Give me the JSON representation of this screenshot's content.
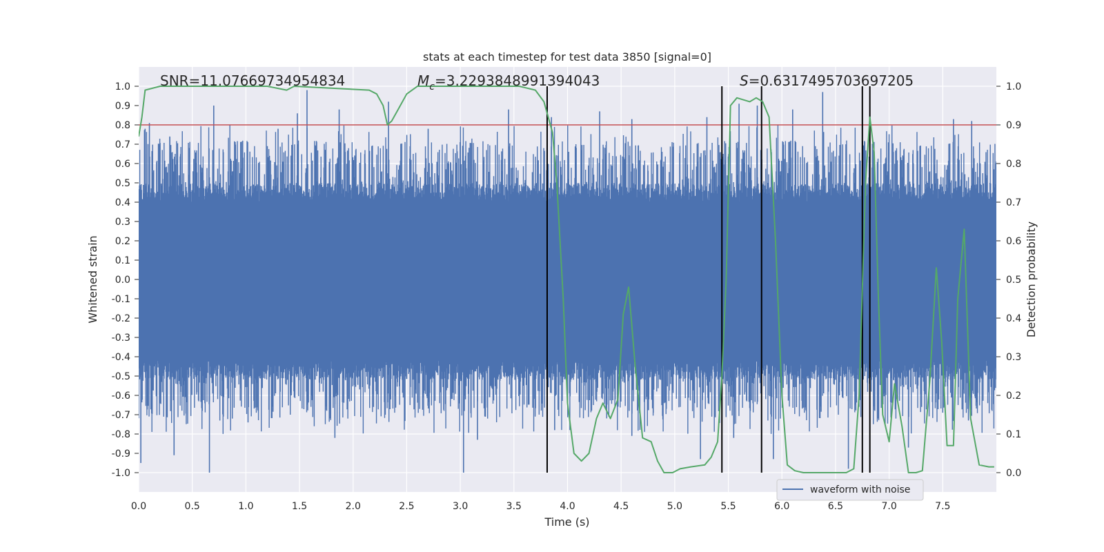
{
  "chart_data": {
    "type": "line",
    "title": "stats at each timestep for test data 3850 [signal=0]",
    "xlabel": "Time (s)",
    "ylabel": "Whitened strain",
    "y2label": "Detection probability",
    "xlim": [
      0.0,
      8.0
    ],
    "ylim": [
      -1.1,
      1.1
    ],
    "y2lim": [
      -0.05,
      1.05
    ],
    "xticks": [
      "0.0",
      "0.5",
      "1.0",
      "1.5",
      "2.0",
      "2.5",
      "3.0",
      "3.5",
      "4.0",
      "4.5",
      "5.0",
      "5.5",
      "6.0",
      "6.5",
      "7.0",
      "7.5"
    ],
    "xtick_values": [
      0.0,
      0.5,
      1.0,
      1.5,
      2.0,
      2.5,
      3.0,
      3.5,
      4.0,
      4.5,
      5.0,
      5.5,
      6.0,
      6.5,
      7.0,
      7.5
    ],
    "yticks": [
      "1.0",
      "0.9",
      "0.8",
      "0.7",
      "0.6",
      "0.5",
      "0.4",
      "0.3",
      "0.2",
      "0.1",
      "0.0",
      "-0.1",
      "-0.2",
      "-0.3",
      "-0.4",
      "-0.5",
      "-0.6",
      "-0.7",
      "-0.8",
      "-0.9",
      "-1.0"
    ],
    "ytick_values": [
      1.0,
      0.9,
      0.8,
      0.7,
      0.6,
      0.5,
      0.4,
      0.3,
      0.2,
      0.1,
      0.0,
      -0.1,
      -0.2,
      -0.3,
      -0.4,
      -0.5,
      -0.6,
      -0.7,
      -0.8,
      -0.9,
      -1.0
    ],
    "y2ticks": [
      "1.0",
      "0.9",
      "0.8",
      "0.7",
      "0.6",
      "0.5",
      "0.4",
      "0.3",
      "0.2",
      "0.1",
      "0.0"
    ],
    "y2tick_values": [
      1.0,
      0.9,
      0.8,
      0.7,
      0.6,
      0.5,
      0.4,
      0.3,
      0.2,
      0.1,
      0.0
    ],
    "threshold": 0.9,
    "event_lines_x": [
      3.81,
      5.44,
      5.81,
      6.75,
      6.82
    ],
    "waveform": {
      "name": "waveform with noise",
      "color": "#4c72b0",
      "dense_band": [
        -0.42,
        0.4
      ],
      "n_samples": 2400,
      "peak_spikes": [
        [
          0.06,
          0.78
        ],
        [
          0.1,
          0.81
        ],
        [
          0.29,
          0.74
        ],
        [
          0.7,
          0.9
        ],
        [
          1.3,
          0.78
        ],
        [
          1.48,
          0.86
        ],
        [
          1.57,
          0.98
        ],
        [
          1.87,
          0.88
        ],
        [
          2.33,
          0.92
        ],
        [
          2.7,
          0.78
        ],
        [
          3.45,
          0.88
        ],
        [
          3.85,
          0.84
        ],
        [
          4.3,
          0.87
        ],
        [
          4.6,
          0.83
        ],
        [
          5.3,
          0.84
        ],
        [
          5.6,
          0.91
        ],
        [
          5.77,
          0.9
        ],
        [
          6.1,
          0.88
        ],
        [
          6.38,
          0.97
        ],
        [
          6.75,
          0.88
        ],
        [
          7.6,
          0.83
        ],
        [
          7.77,
          0.82
        ]
      ],
      "trough_spikes": [
        [
          0.02,
          -0.95
        ],
        [
          0.33,
          -0.91
        ],
        [
          0.66,
          -1.0
        ],
        [
          1.02,
          -0.74
        ],
        [
          1.83,
          -0.82
        ],
        [
          2.3,
          -0.7
        ],
        [
          3.03,
          -1.0
        ],
        [
          3.16,
          -0.83
        ],
        [
          3.88,
          -0.78
        ],
        [
          4.6,
          -0.81
        ],
        [
          4.8,
          -0.69
        ],
        [
          5.24,
          -0.93
        ],
        [
          5.55,
          -0.82
        ],
        [
          5.92,
          -0.93
        ],
        [
          6.62,
          -0.98
        ],
        [
          7.18,
          -0.87
        ],
        [
          7.74,
          -0.73
        ]
      ]
    },
    "detection_probability": {
      "color": "#55a868",
      "points": [
        [
          0.0,
          0.87
        ],
        [
          0.03,
          0.92
        ],
        [
          0.06,
          0.99
        ],
        [
          0.2,
          1.0
        ],
        [
          1.2,
          1.0
        ],
        [
          1.38,
          0.99
        ],
        [
          1.45,
          1.0
        ],
        [
          2.15,
          0.99
        ],
        [
          2.22,
          0.98
        ],
        [
          2.28,
          0.95
        ],
        [
          2.32,
          0.9
        ],
        [
          2.36,
          0.91
        ],
        [
          2.42,
          0.94
        ],
        [
          2.5,
          0.98
        ],
        [
          2.6,
          1.0
        ],
        [
          3.55,
          1.0
        ],
        [
          3.7,
          0.99
        ],
        [
          3.78,
          0.96
        ],
        [
          3.82,
          0.92
        ],
        [
          3.86,
          0.88
        ],
        [
          3.9,
          0.75
        ],
        [
          3.96,
          0.45
        ],
        [
          4.0,
          0.18
        ],
        [
          4.06,
          0.05
        ],
        [
          4.13,
          0.03
        ],
        [
          4.2,
          0.05
        ],
        [
          4.27,
          0.14
        ],
        [
          4.33,
          0.18
        ],
        [
          4.4,
          0.14
        ],
        [
          4.47,
          0.19
        ],
        [
          4.52,
          0.41
        ],
        [
          4.57,
          0.48
        ],
        [
          4.63,
          0.28
        ],
        [
          4.7,
          0.09
        ],
        [
          4.78,
          0.08
        ],
        [
          4.84,
          0.03
        ],
        [
          4.9,
          0.0
        ],
        [
          4.98,
          0.0
        ],
        [
          5.05,
          0.01
        ],
        [
          5.15,
          0.015
        ],
        [
          5.28,
          0.02
        ],
        [
          5.34,
          0.04
        ],
        [
          5.4,
          0.08
        ],
        [
          5.44,
          0.25
        ],
        [
          5.48,
          0.5
        ],
        [
          5.52,
          0.95
        ],
        [
          5.58,
          0.97
        ],
        [
          5.7,
          0.96
        ],
        [
          5.76,
          0.97
        ],
        [
          5.82,
          0.96
        ],
        [
          5.88,
          0.92
        ],
        [
          5.94,
          0.6
        ],
        [
          6.0,
          0.2
        ],
        [
          6.05,
          0.02
        ],
        [
          6.12,
          0.005
        ],
        [
          6.2,
          0.0
        ],
        [
          6.6,
          0.0
        ],
        [
          6.67,
          0.01
        ],
        [
          6.72,
          0.2
        ],
        [
          6.78,
          0.75
        ],
        [
          6.82,
          0.92
        ],
        [
          6.86,
          0.83
        ],
        [
          6.9,
          0.45
        ],
        [
          6.94,
          0.15
        ],
        [
          7.0,
          0.08
        ],
        [
          7.05,
          0.23
        ],
        [
          7.12,
          0.12
        ],
        [
          7.18,
          0.0
        ],
        [
          7.25,
          0.0
        ],
        [
          7.31,
          0.005
        ],
        [
          7.38,
          0.24
        ],
        [
          7.44,
          0.53
        ],
        [
          7.49,
          0.34
        ],
        [
          7.54,
          0.07
        ],
        [
          7.6,
          0.07
        ],
        [
          7.64,
          0.45
        ],
        [
          7.7,
          0.63
        ],
        [
          7.76,
          0.14
        ],
        [
          7.84,
          0.02
        ],
        [
          7.93,
          0.015
        ],
        [
          7.98,
          0.015
        ]
      ]
    },
    "annotations": {
      "snr": "SNR=11.07669734954834",
      "mc_symbol": "M",
      "mc_sub": "c",
      "mc_value": "=3.2293848991394043",
      "s_symbol": "S",
      "s_value": "=0.6317495703697205"
    },
    "legend": {
      "label": "waveform with noise",
      "placement": "lower-right"
    },
    "grid": true,
    "colors": {
      "plot_background": "#eaeaf2",
      "grid": "#ffffff",
      "threshold": "#c44e52",
      "event_line": "#000000"
    }
  }
}
